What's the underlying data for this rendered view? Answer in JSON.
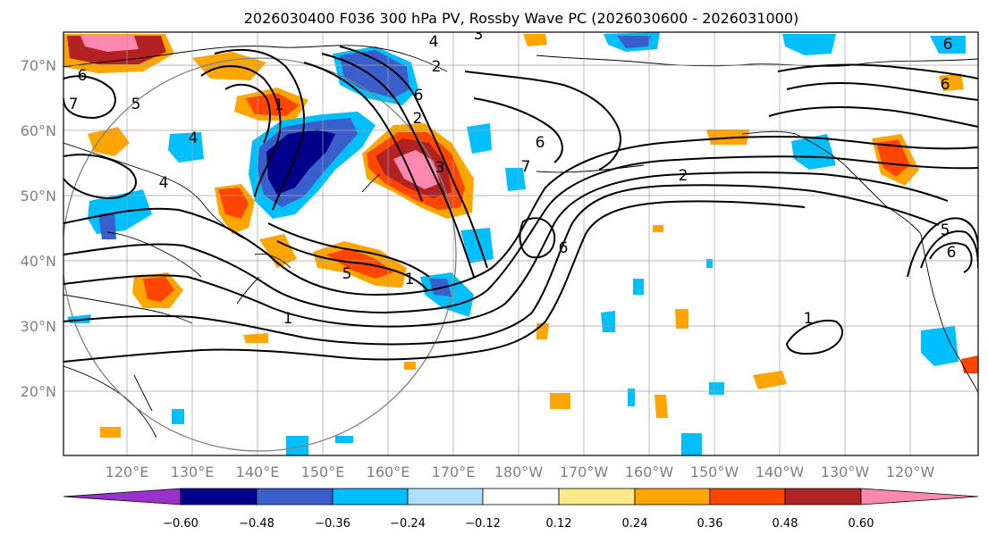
{
  "title": "2026030400 F036 300 hPa PV, Rossby Wave PC (2026030600 - 2026031000)",
  "lat_labels": [
    "70°N",
    "60°N",
    "50°N",
    "40°N",
    "30°N",
    "20°N"
  ],
  "lon_labels": [
    "120°E",
    "130°E",
    "140°E",
    "150°E",
    "160°E",
    "170°E",
    "180°W",
    "170°W",
    "160°W",
    "150°W",
    "140°W",
    "130°W",
    "120°W"
  ],
  "colorbar": {
    "ticks": [
      "−0.60",
      "−0.48",
      "−0.36",
      "−0.24",
      "−0.12",
      "0.12",
      "0.24",
      "0.36",
      "0.48",
      "0.60"
    ],
    "colors": [
      "#9932cc",
      "#00008b",
      "#3a5fcd",
      "#00bfff",
      "#b0e0ff",
      "#ffffff",
      "#ffe98a",
      "#ffa500",
      "#ff4500",
      "#b22222",
      "#ff88b0"
    ]
  },
  "contour_labels": [
    "4",
    "3",
    "1",
    "6",
    "7",
    "5",
    "6",
    "2",
    "4",
    "4",
    "3",
    "6",
    "5",
    "6",
    "1",
    "1",
    "2",
    "6",
    "6",
    "1",
    "7",
    "5",
    "6",
    "2"
  ],
  "map": {
    "lat_range": [
      "10°N",
      "75°N"
    ],
    "lon_range": [
      "110°E",
      "110°W"
    ],
    "contour_field": "300 hPa PV",
    "shaded_field": "Rossby Wave PC"
  }
}
